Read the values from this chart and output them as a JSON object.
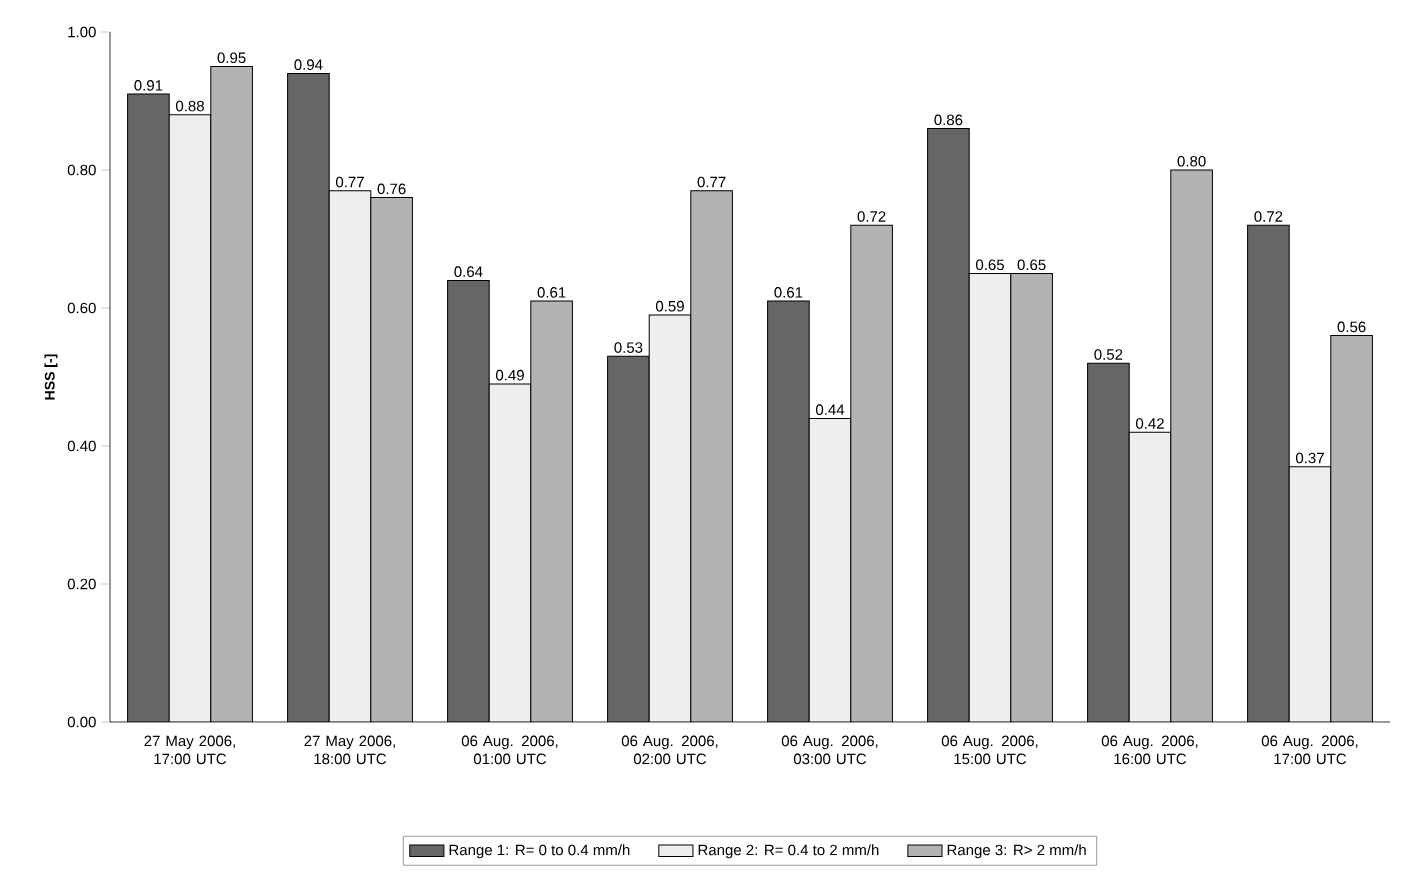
{
  "chart_data": {
    "type": "bar",
    "ylabel": "HSS [-]",
    "categories": [
      "27 May 2006, 17:00 UTC",
      "27 May 2006, 18:00 UTC",
      "06 Aug. 2006, 01:00 UTC",
      "06 Aug. 2006, 02:00 UTC",
      "06 Aug. 2006, 03:00 UTC",
      "06 Aug. 2006, 15:00 UTC",
      "06 Aug. 2006, 16:00 UTC",
      "06 Aug. 2006, 17:00 UTC"
    ],
    "series": [
      {
        "name": "Range 1: R= 0 to 0.4 mm/h",
        "color": "#666666",
        "values": [
          0.91,
          0.94,
          0.64,
          0.53,
          0.61,
          0.86,
          0.52,
          0.72
        ],
        "value_labels": [
          "0.91",
          "0.94",
          "0.64",
          "0.53",
          "0.61",
          "0.86",
          "0.52",
          "0.72"
        ]
      },
      {
        "name": "Range 2: R= 0.4 to 2 mm/h",
        "color": "#eeeeee",
        "values": [
          0.88,
          0.77,
          0.49,
          0.59,
          0.44,
          0.65,
          0.42,
          0.37
        ],
        "value_labels": [
          "0.88",
          "0.77",
          "0.49",
          "0.59",
          "0.44",
          "0.65",
          "0.42",
          "0.37"
        ]
      },
      {
        "name": "Range 3: R> 2 mm/h",
        "color": "#b3b3b3",
        "values": [
          0.95,
          0.76,
          0.61,
          0.77,
          0.72,
          0.65,
          0.8,
          0.56
        ],
        "value_labels": [
          "0.95",
          "0.76",
          "0.61",
          "0.77",
          "0.72",
          "0.65",
          "0.80",
          "0.56"
        ]
      }
    ],
    "ylim": [
      0,
      1
    ],
    "yticks": [
      {
        "value": 0,
        "label": "0.00"
      },
      {
        "value": 0.2,
        "label": "0.20"
      },
      {
        "value": 0.4,
        "label": "0.40"
      },
      {
        "value": 0.6,
        "label": "0.60"
      },
      {
        "value": 0.8,
        "label": "0.80"
      },
      {
        "value": 1,
        "label": "1.00"
      }
    ],
    "legend": "bottom"
  }
}
